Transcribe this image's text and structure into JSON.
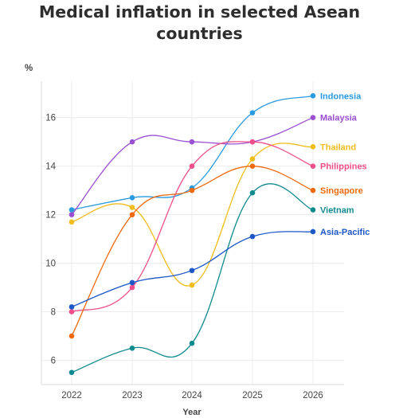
{
  "chart_data": {
    "type": "line",
    "title": "Medical inflation in selected Asean countries",
    "ylabel": "%",
    "xlabel": "Year",
    "x": [
      "2022",
      "2023",
      "2024",
      "2025",
      "2026"
    ],
    "ylim": [
      5,
      17.5
    ],
    "yticks": [
      6,
      8,
      10,
      12,
      14,
      16
    ],
    "grid": true,
    "legend_position": "right, at line ends",
    "series": [
      {
        "name": "Indonesia",
        "color": "#2a9be0",
        "values": [
          12.2,
          12.7,
          13.1,
          16.2,
          16.9
        ]
      },
      {
        "name": "Malaysia",
        "color": "#9b4fd1",
        "values": [
          12.0,
          15.0,
          15.0,
          15.0,
          16.0
        ]
      },
      {
        "name": "Thailand",
        "color": "#f0bd1a",
        "values": [
          11.7,
          12.3,
          9.1,
          14.3,
          14.8
        ]
      },
      {
        "name": "Philippines",
        "color": "#ee4f8a",
        "values": [
          8.0,
          9.0,
          14.0,
          15.0,
          14.0
        ]
      },
      {
        "name": "Singapore",
        "color": "#f06a0f",
        "values": [
          7.0,
          12.0,
          13.0,
          14.0,
          13.0
        ]
      },
      {
        "name": "Vietnam",
        "color": "#0f8a8f",
        "values": [
          5.5,
          6.5,
          6.7,
          12.9,
          12.2
        ]
      },
      {
        "name": "Asia-Pacific",
        "color": "#1c57c8",
        "values": [
          8.2,
          9.2,
          9.7,
          11.1,
          11.3
        ]
      }
    ]
  }
}
